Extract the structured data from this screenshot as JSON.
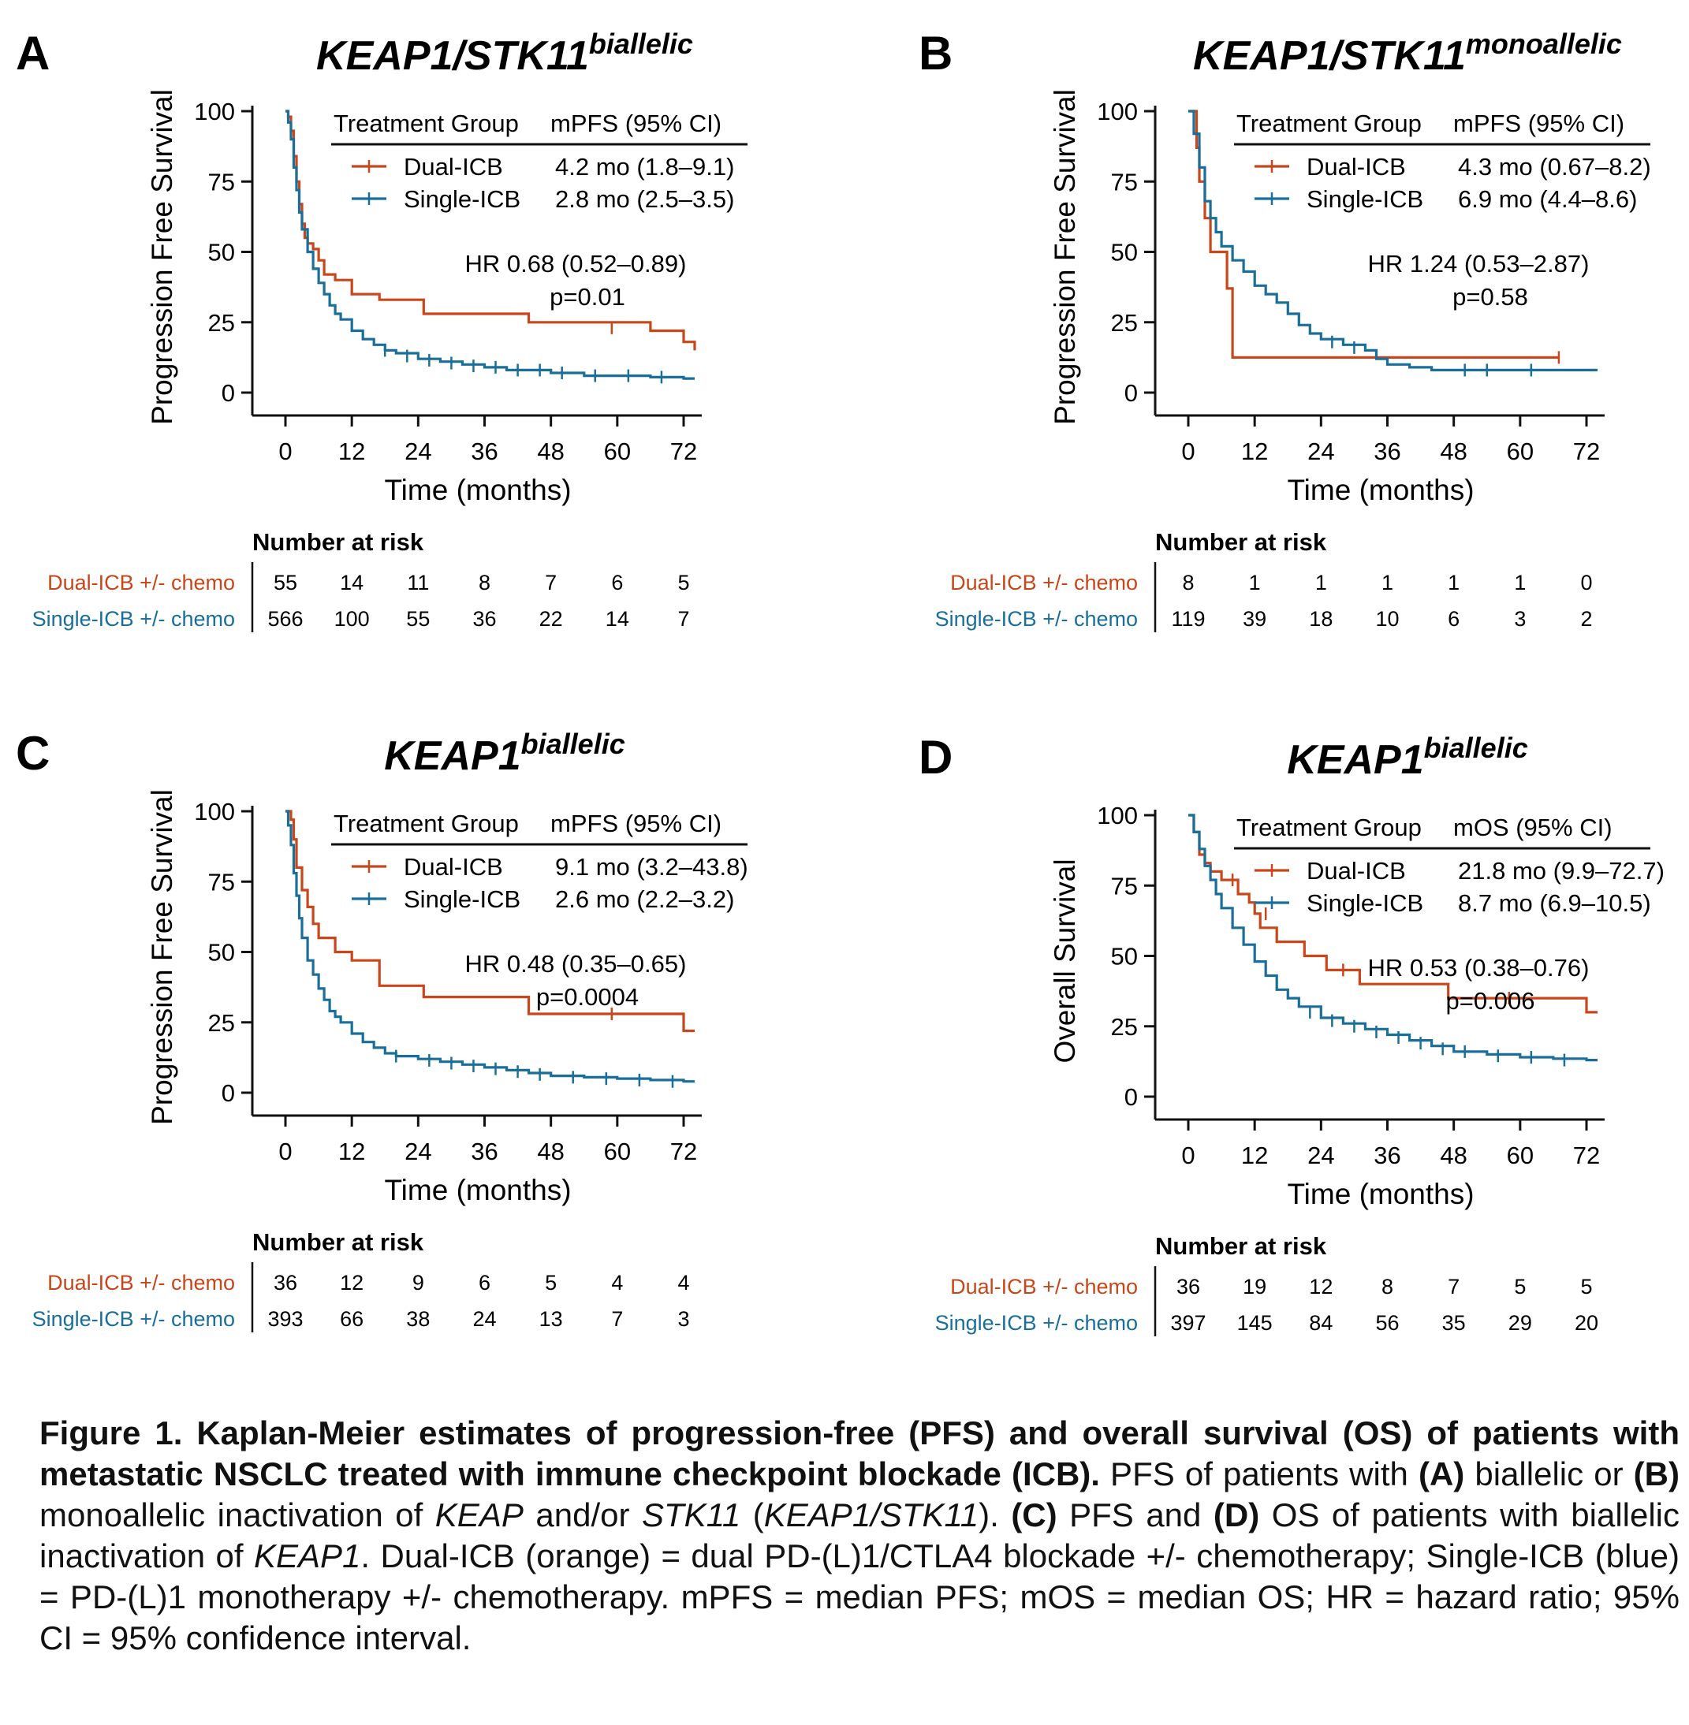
{
  "colors": {
    "dual": "#c8461a",
    "single": "#1a6f9a"
  },
  "caption": {
    "bold": "Figure 1. Kaplan-Meier estimates of progression-free (PFS) and overall survival (OS) of patients with metastatic NSCLC treated with immune checkpoint blockade (ICB).",
    "segments": [
      {
        "t": " PFS of patients with ",
        "s": "n"
      },
      {
        "t": "(A)",
        "s": "b"
      },
      {
        "t": " biallelic or ",
        "s": "n"
      },
      {
        "t": "(B)",
        "s": "b"
      },
      {
        "t": " monoallelic inactivation of ",
        "s": "n"
      },
      {
        "t": "KEAP",
        "s": "i"
      },
      {
        "t": " and/or ",
        "s": "n"
      },
      {
        "t": "STK11",
        "s": "i"
      },
      {
        "t": " (",
        "s": "n"
      },
      {
        "t": "KEAP1/STK11",
        "s": "i"
      },
      {
        "t": "). ",
        "s": "n"
      },
      {
        "t": "(C)",
        "s": "b"
      },
      {
        "t": " PFS and ",
        "s": "n"
      },
      {
        "t": "(D)",
        "s": "b"
      },
      {
        "t": " OS of patients with biallelic inactivation of ",
        "s": "n"
      },
      {
        "t": "KEAP1",
        "s": "i"
      },
      {
        "t": ". Dual-ICB (orange) = dual PD-(L)1/CTLA4 blockade +/- chemotherapy; Single-ICB (blue) = PD-(L)1 monotherapy +/- chemotherapy. mPFS = median PFS; mOS = median OS; HR = hazard ratio; 95% CI = 95% confidence interval.",
        "s": "n"
      }
    ]
  },
  "chart_data": [
    {
      "type": "line",
      "panel": "A",
      "title": "KEAP1/STK11",
      "title_sup": "biallelic",
      "xlabel": "Time (months)",
      "ylabel": "Progression Free Survival",
      "xlim": [
        0,
        74
      ],
      "ylim": [
        0,
        100
      ],
      "xticks": [
        0,
        12,
        24,
        36,
        48,
        60,
        72
      ],
      "yticks": [
        0,
        25,
        50,
        75,
        100
      ],
      "legend": {
        "header": [
          "Treatment Group",
          "mPFS (95% CI)"
        ],
        "placement": "top-right"
      },
      "series": [
        {
          "name": "Dual-ICB",
          "stat": "4.2 mo (1.8–9.1)",
          "color": "#c8461a",
          "x": [
            0,
            0.5,
            1,
            1.5,
            2,
            2.5,
            3,
            3.5,
            4,
            5,
            6,
            7,
            9,
            12,
            17,
            25,
            44,
            66,
            72,
            74
          ],
          "y": [
            100,
            98,
            93,
            84,
            75,
            67,
            60,
            55,
            53,
            51,
            47,
            42,
            40,
            35,
            33,
            28,
            25,
            22,
            18,
            15
          ],
          "censor_x": [
            59
          ],
          "censor_y": [
            23
          ]
        },
        {
          "name": "Single-ICB",
          "stat": "2.8 mo (2.5–3.5)",
          "color": "#1a6f9a",
          "x": [
            0,
            0.5,
            1,
            1.5,
            2,
            2.5,
            3,
            4,
            5,
            6,
            7,
            8,
            9,
            10,
            12,
            14,
            16,
            18,
            20,
            24,
            28,
            32,
            36,
            40,
            44,
            48,
            54,
            60,
            66,
            72,
            74
          ],
          "y": [
            100,
            96,
            90,
            80,
            72,
            64,
            58,
            50,
            44,
            39,
            35,
            31,
            28,
            26,
            22,
            19,
            17,
            15,
            14,
            12,
            11,
            10,
            9,
            8,
            8,
            7,
            6,
            6,
            5.5,
            5,
            5
          ],
          "censor_x": [
            18,
            22,
            26,
            30,
            34,
            38,
            42,
            46,
            50,
            56,
            62,
            68
          ],
          "censor_y": [
            15,
            13,
            11.5,
            10.5,
            9.5,
            9,
            8,
            8,
            7,
            6,
            6,
            5.5
          ]
        }
      ],
      "annotation": {
        "hr": "HR 0.68 (0.52–0.89)",
        "p": "p=0.01"
      },
      "risk_table": {
        "title": "Number at risk",
        "rows": [
          {
            "label": "Dual-ICB +/- chemo",
            "values": [
              "55",
              "14",
              "11",
              "8",
              "7",
              "6",
              "5"
            ]
          },
          {
            "label": "Single-ICB +/- chemo",
            "values": [
              "566",
              "100",
              "55",
              "36",
              "22",
              "14",
              "7"
            ]
          }
        ]
      }
    },
    {
      "type": "line",
      "panel": "B",
      "title": "KEAP1/STK11",
      "title_sup": "monoallelic",
      "xlabel": "Time (months)",
      "ylabel": "Progression Free Survival",
      "xlim": [
        0,
        74
      ],
      "ylim": [
        0,
        100
      ],
      "xticks": [
        0,
        12,
        24,
        36,
        48,
        60,
        72
      ],
      "yticks": [
        0,
        25,
        50,
        75,
        100
      ],
      "legend": {
        "header": [
          "Treatment Group",
          "mPFS (95% CI)"
        ],
        "placement": "top-right"
      },
      "series": [
        {
          "name": "Dual-ICB",
          "stat": "4.3 mo (0.67–8.2)",
          "color": "#c8461a",
          "x": [
            0,
            1.5,
            2,
            3,
            4,
            7,
            8,
            67
          ],
          "y": [
            100,
            87,
            75,
            62,
            50,
            37,
            12.5,
            12.5
          ],
          "censor_x": [
            67
          ],
          "censor_y": [
            12.5
          ]
        },
        {
          "name": "Single-ICB",
          "stat": "6.9 mo (4.4–8.6)",
          "color": "#1a6f9a",
          "x": [
            0,
            1,
            2,
            3,
            4,
            5,
            6,
            8,
            10,
            12,
            14,
            16,
            18,
            20,
            22,
            24,
            28,
            32,
            34,
            36,
            40,
            44,
            48,
            60,
            74
          ],
          "y": [
            100,
            92,
            80,
            68,
            62,
            57,
            52,
            47,
            43,
            38,
            35,
            32,
            28,
            24,
            21,
            19,
            17,
            15,
            12,
            10,
            9,
            8,
            8,
            8,
            8
          ],
          "censor_x": [
            26,
            30,
            50,
            54,
            62
          ],
          "censor_y": [
            18,
            16,
            8,
            8,
            8
          ]
        }
      ],
      "annotation": {
        "hr": "HR 1.24 (0.53–2.87)",
        "p": "p=0.58"
      },
      "risk_table": {
        "title": "Number at risk",
        "rows": [
          {
            "label": "Dual-ICB +/- chemo",
            "values": [
              "8",
              "1",
              "1",
              "1",
              "1",
              "1",
              "0"
            ]
          },
          {
            "label": "Single-ICB +/- chemo",
            "values": [
              "119",
              "39",
              "18",
              "10",
              "6",
              "3",
              "2"
            ]
          }
        ]
      }
    },
    {
      "type": "line",
      "panel": "C",
      "title": "KEAP1",
      "title_sup": "biallelic",
      "xlabel": "Time (months)",
      "ylabel": "Progression Free Survival",
      "xlim": [
        0,
        74
      ],
      "ylim": [
        0,
        100
      ],
      "xticks": [
        0,
        12,
        24,
        36,
        48,
        60,
        72
      ],
      "yticks": [
        0,
        25,
        50,
        75,
        100
      ],
      "legend": {
        "header": [
          "Treatment Group",
          "mPFS (95% CI)"
        ],
        "placement": "top-right"
      },
      "series": [
        {
          "name": "Dual-ICB",
          "stat": "9.1 mo (3.2–43.8)",
          "color": "#c8461a",
          "x": [
            0,
            1,
            1.5,
            2,
            3,
            4,
            5,
            6,
            9,
            12,
            17,
            25,
            44,
            72,
            74
          ],
          "y": [
            100,
            97,
            90,
            80,
            72,
            66,
            60,
            55,
            50,
            47,
            38,
            34,
            28,
            22,
            22
          ],
          "censor_x": [
            59
          ],
          "censor_y": [
            28
          ]
        },
        {
          "name": "Single-ICB",
          "stat": "2.6 mo (2.2–3.2)",
          "color": "#1a6f9a",
          "x": [
            0,
            0.5,
            1,
            1.5,
            2,
            2.5,
            3,
            4,
            5,
            6,
            7,
            8,
            9,
            10,
            12,
            14,
            16,
            18,
            20,
            24,
            28,
            32,
            36,
            40,
            44,
            48,
            54,
            60,
            66,
            72,
            74
          ],
          "y": [
            100,
            95,
            88,
            78,
            70,
            62,
            55,
            47,
            42,
            37,
            33,
            29,
            27,
            25,
            21,
            18,
            16,
            14,
            13,
            12,
            11,
            10,
            9,
            8,
            7,
            6,
            5.5,
            5,
            4.5,
            4,
            4
          ],
          "censor_x": [
            20,
            26,
            30,
            34,
            38,
            42,
            46,
            52,
            58,
            64,
            70
          ],
          "censor_y": [
            13,
            11.5,
            10.5,
            9.5,
            8.5,
            7.5,
            6.5,
            5.5,
            5,
            4.5,
            4
          ]
        }
      ],
      "annotation": {
        "hr": "HR 0.48 (0.35–0.65)",
        "p": "p=0.0004"
      },
      "risk_table": {
        "title": "Number at risk",
        "rows": [
          {
            "label": "Dual-ICB +/- chemo",
            "values": [
              "36",
              "12",
              "9",
              "6",
              "5",
              "4",
              "4"
            ]
          },
          {
            "label": "Single-ICB +/- chemo",
            "values": [
              "393",
              "66",
              "38",
              "24",
              "13",
              "7",
              "3"
            ]
          }
        ]
      }
    },
    {
      "type": "line",
      "panel": "D",
      "title": "KEAP1",
      "title_sup": "biallelic",
      "xlabel": "Time (months)",
      "ylabel": "Overall Survival",
      "xlim": [
        0,
        74
      ],
      "ylim": [
        0,
        100
      ],
      "xticks": [
        0,
        12,
        24,
        36,
        48,
        60,
        72
      ],
      "yticks": [
        0,
        25,
        50,
        75,
        100
      ],
      "legend": {
        "header": [
          "Treatment Group",
          "mOS (95% CI)"
        ],
        "placement": "top-right"
      },
      "series": [
        {
          "name": "Dual-ICB",
          "stat": "21.8 mo (9.9–72.7)",
          "color": "#c8461a",
          "x": [
            0,
            1,
            2,
            3,
            4,
            6,
            9,
            11,
            12,
            13,
            16,
            21,
            25,
            31,
            47,
            72,
            74
          ],
          "y": [
            100,
            94,
            86,
            83,
            80,
            77,
            72,
            69,
            65,
            60,
            55,
            50,
            45,
            40,
            35,
            30,
            30
          ],
          "censor_x": [
            8,
            14,
            28,
            58
          ],
          "censor_y": [
            77,
            65,
            45,
            35
          ]
        },
        {
          "name": "Single-ICB",
          "stat": "8.7 mo (6.9–10.5)",
          "color": "#1a6f9a",
          "x": [
            0,
            1,
            2,
            3,
            4,
            5,
            6,
            8,
            10,
            12,
            14,
            16,
            18,
            20,
            24,
            28,
            32,
            36,
            40,
            44,
            48,
            54,
            60,
            66,
            72,
            74
          ],
          "y": [
            100,
            94,
            88,
            82,
            77,
            72,
            67,
            60,
            54,
            48,
            43,
            38,
            35,
            32,
            28,
            26,
            24,
            22,
            20,
            18,
            16,
            15,
            14,
            13.5,
            13,
            13
          ],
          "censor_x": [
            22,
            26,
            30,
            34,
            38,
            42,
            46,
            50,
            56,
            62,
            68
          ],
          "censor_y": [
            30,
            27,
            25,
            23,
            21,
            19,
            17,
            16,
            14.5,
            14,
            13
          ]
        }
      ],
      "annotation": {
        "hr": "HR 0.53 (0.38–0.76)",
        "p": "p=0.006"
      },
      "risk_table": {
        "title": "Number at risk",
        "rows": [
          {
            "label": "Dual-ICB +/- chemo",
            "values": [
              "36",
              "19",
              "12",
              "8",
              "7",
              "5",
              "5"
            ]
          },
          {
            "label": "Single-ICB +/- chemo",
            "values": [
              "397",
              "145",
              "84",
              "56",
              "35",
              "29",
              "20"
            ]
          }
        ]
      }
    }
  ]
}
